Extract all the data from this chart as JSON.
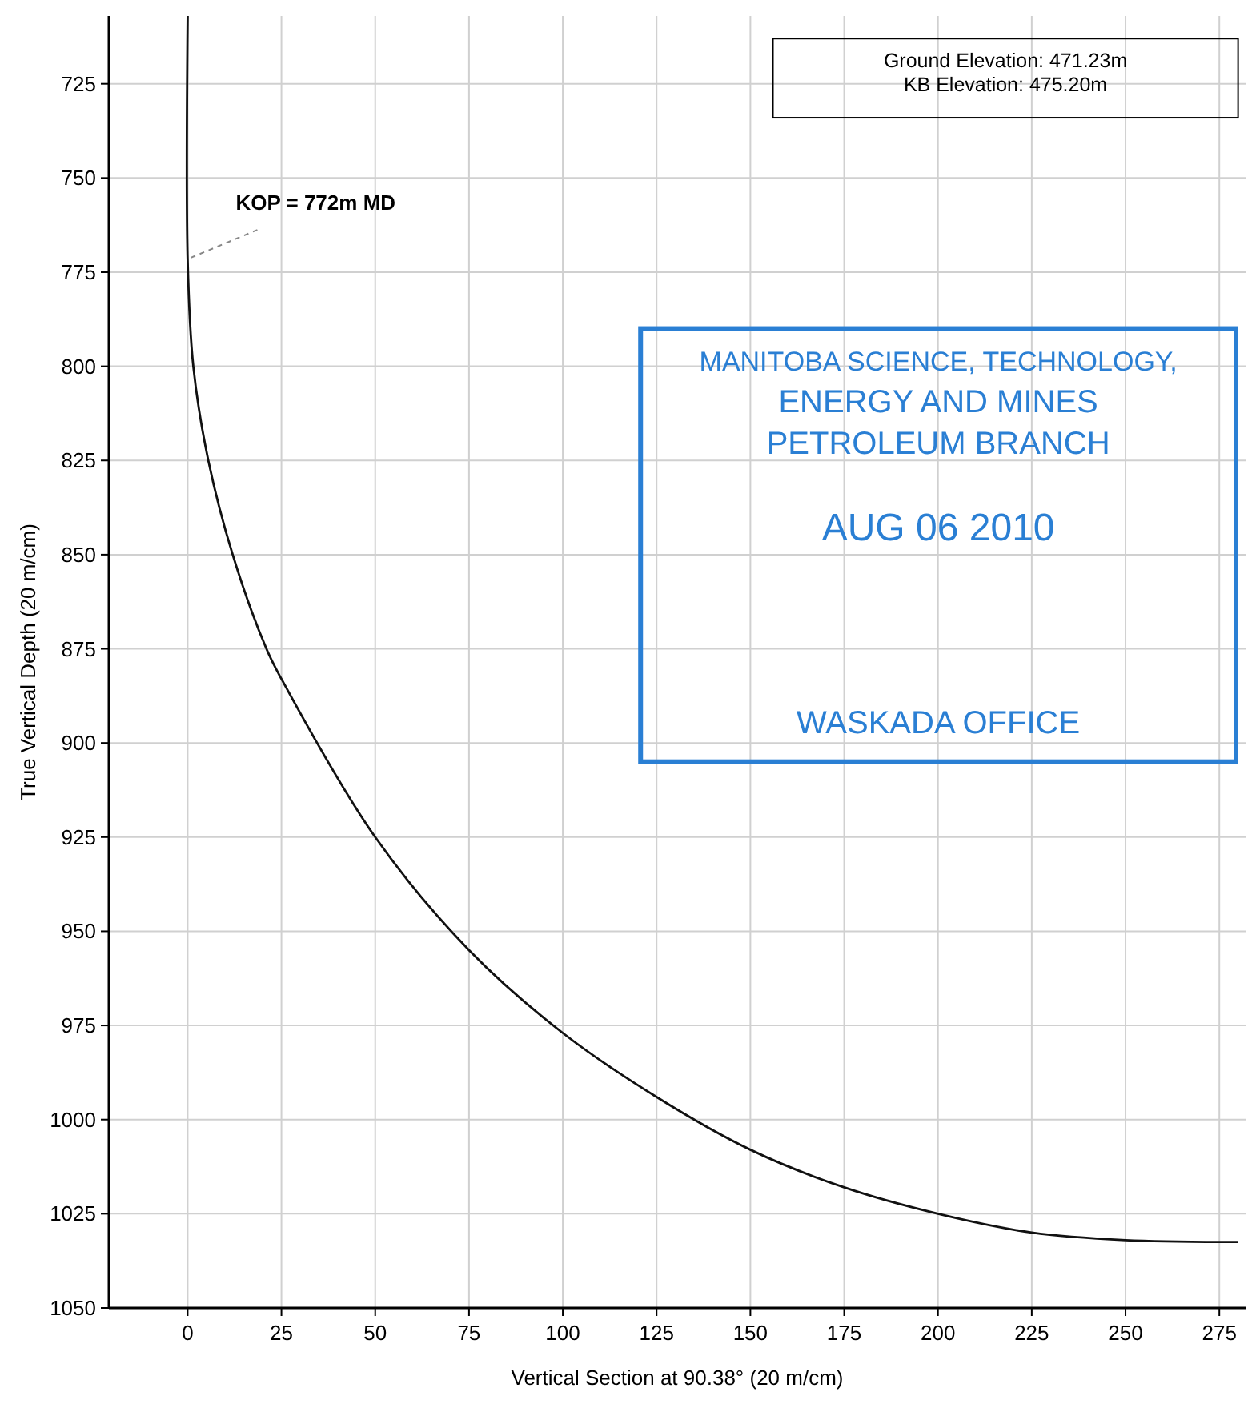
{
  "chart_data": {
    "type": "line",
    "xlabel": "Vertical Section at 90.38° (20 m/cm)",
    "ylabel": "True Vertical Depth (20 m/cm)",
    "series": [
      {
        "color": "#111111",
        "x": [
          0,
          0,
          1.5,
          5.5,
          12,
          21,
          25,
          50,
          75,
          100,
          125,
          150,
          175,
          200,
          225,
          250,
          280
        ],
        "values": [
          707,
          772,
          800,
          825,
          850,
          875,
          883,
          925,
          955,
          977,
          994,
          1008,
          1018,
          1025,
          1030,
          1032,
          1032.5
        ]
      }
    ],
    "xlim": [
      -21,
      282
    ],
    "xticks": [
      0,
      25,
      50,
      75,
      100,
      125,
      150,
      175,
      200,
      225,
      250,
      275
    ],
    "ylim": [
      1050,
      707
    ],
    "yticks": [
      725,
      750,
      775,
      800,
      825,
      850,
      875,
      900,
      925,
      950,
      975,
      1000,
      1025,
      1050
    ],
    "grid": true,
    "marker": "none",
    "line_style": "solid",
    "annotations": [
      {
        "text": "KOP = 772m MD",
        "x": 0,
        "y": 772
      },
      "Ground Elevation: 471.23m",
      "KB Elevation: 475.20m",
      "MANITOBA SCIENCE, TECHNOLOGY,",
      "ENERGY AND MINES",
      "PETROLEUM BRANCH",
      "AUG 06 2010",
      "WASKADA OFFICE"
    ]
  }
}
